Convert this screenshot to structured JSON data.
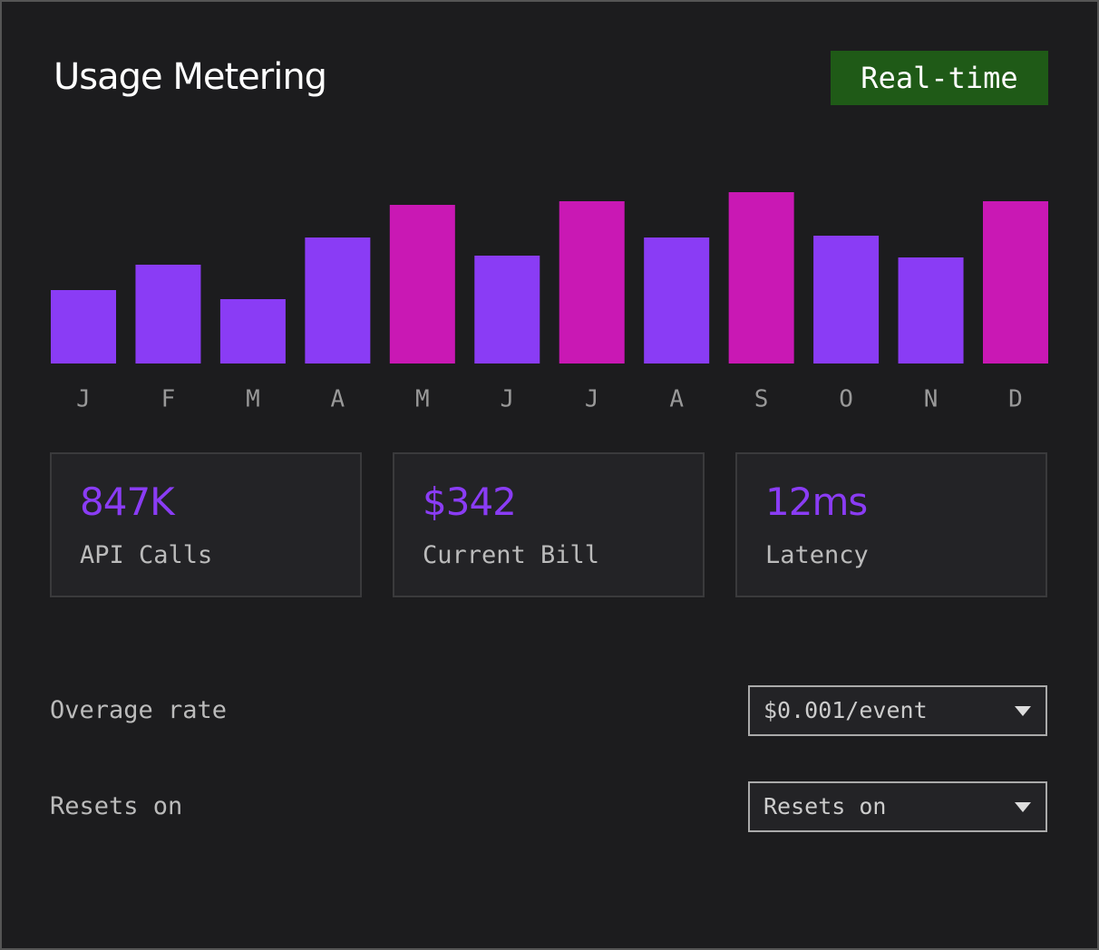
{
  "header": {
    "title": "Usage Metering",
    "badge": "Real-time"
  },
  "chart_data": {
    "type": "bar",
    "categories": [
      "J",
      "F",
      "M",
      "A",
      "M",
      "J",
      "J",
      "A",
      "S",
      "O",
      "N",
      "D"
    ],
    "values": [
      81,
      109,
      71,
      139,
      175,
      119,
      179,
      139,
      189,
      141,
      117,
      179
    ],
    "colors": [
      "#8a3cf5",
      "#8a3cf5",
      "#8a3cf5",
      "#8a3cf5",
      "#c918b4",
      "#8a3cf5",
      "#c918b4",
      "#8a3cf5",
      "#c918b4",
      "#8a3cf5",
      "#8a3cf5",
      "#c918b4"
    ],
    "ylim": [
      0,
      200
    ]
  },
  "stats": [
    {
      "value": "847K",
      "label": "API Calls"
    },
    {
      "value": "$342",
      "label": "Current Bill"
    },
    {
      "value": "12ms",
      "label": "Latency"
    }
  ],
  "settings": [
    {
      "label": "Overage rate",
      "selected": "$0.001/event"
    },
    {
      "label": "Resets on",
      "selected": "Resets on"
    }
  ]
}
